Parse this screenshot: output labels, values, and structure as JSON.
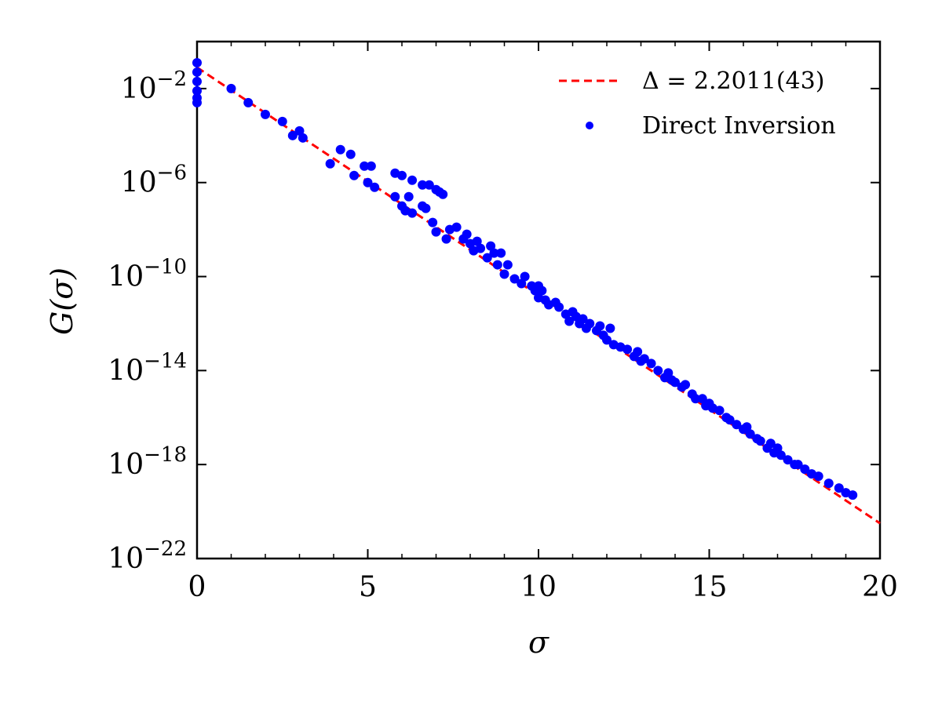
{
  "chart_data": {
    "type": "scatter",
    "xlabel": "σ",
    "ylabel": "G(σ)",
    "xlim": [
      0,
      20
    ],
    "ylim_log10": [
      -22,
      0
    ],
    "y_scale": "log",
    "x_ticks": [
      0,
      5,
      10,
      15,
      20
    ],
    "x_tick_labels": [
      "0",
      "5",
      "10",
      "15",
      "20"
    ],
    "y_ticks_exp": [
      -22,
      -18,
      -14,
      -10,
      -6,
      -2
    ],
    "y_tick_labels": [
      {
        "base": "10",
        "exp": "−22"
      },
      {
        "base": "10",
        "exp": "−18"
      },
      {
        "base": "10",
        "exp": "−14"
      },
      {
        "base": "10",
        "exp": "−10"
      },
      {
        "base": "10",
        "exp": "−6"
      },
      {
        "base": "10",
        "exp": "−2"
      }
    ],
    "legend_position": "top-right",
    "grid": false,
    "fit_line": {
      "name": "Δ = 2.2011(43)",
      "style": "dashed",
      "color": "#ff0000",
      "x": [
        0,
        20
      ],
      "log10_y": [
        -1.1,
        -20.5
      ]
    },
    "scatter_series": {
      "name": "Direct Inversion",
      "color": "#0000ff",
      "points_log10": [
        [
          0.0,
          -0.9
        ],
        [
          0.0,
          -1.3
        ],
        [
          0.0,
          -1.7
        ],
        [
          0.0,
          -2.1
        ],
        [
          0.0,
          -2.4
        ],
        [
          0.0,
          -2.6
        ],
        [
          1.0,
          -2.0
        ],
        [
          1.5,
          -2.6
        ],
        [
          2.0,
          -3.1
        ],
        [
          2.5,
          -3.4
        ],
        [
          2.8,
          -4.0
        ],
        [
          3.0,
          -3.8
        ],
        [
          3.1,
          -4.1
        ],
        [
          3.9,
          -5.2
        ],
        [
          4.2,
          -4.6
        ],
        [
          4.5,
          -4.8
        ],
        [
          4.6,
          -5.7
        ],
        [
          4.9,
          -5.3
        ],
        [
          5.0,
          -6.0
        ],
        [
          5.1,
          -5.3
        ],
        [
          5.2,
          -6.2
        ],
        [
          5.8,
          -6.6
        ],
        [
          5.8,
          -5.6
        ],
        [
          6.0,
          -7.0
        ],
        [
          6.0,
          -5.7
        ],
        [
          6.1,
          -7.2
        ],
        [
          6.2,
          -6.6
        ],
        [
          6.3,
          -5.9
        ],
        [
          6.3,
          -7.3
        ],
        [
          6.6,
          -6.1
        ],
        [
          6.6,
          -7.0
        ],
        [
          6.7,
          -7.1
        ],
        [
          6.8,
          -6.1
        ],
        [
          7.0,
          -6.3
        ],
        [
          7.1,
          -6.4
        ],
        [
          7.2,
          -6.5
        ],
        [
          6.9,
          -7.7
        ],
        [
          7.0,
          -8.1
        ],
        [
          7.3,
          -8.4
        ],
        [
          7.4,
          -8.0
        ],
        [
          7.6,
          -7.9
        ],
        [
          7.8,
          -8.4
        ],
        [
          7.9,
          -8.2
        ],
        [
          8.0,
          -8.6
        ],
        [
          8.1,
          -8.9
        ],
        [
          8.2,
          -8.5
        ],
        [
          8.3,
          -8.8
        ],
        [
          8.5,
          -9.2
        ],
        [
          8.6,
          -8.7
        ],
        [
          8.7,
          -9.0
        ],
        [
          8.8,
          -9.5
        ],
        [
          8.9,
          -9.0
        ],
        [
          9.0,
          -9.9
        ],
        [
          9.1,
          -9.5
        ],
        [
          9.3,
          -10.1
        ],
        [
          9.5,
          -10.3
        ],
        [
          9.6,
          -10.0
        ],
        [
          9.8,
          -10.4
        ],
        [
          9.9,
          -10.6
        ],
        [
          10.0,
          -10.9
        ],
        [
          10.0,
          -10.4
        ],
        [
          10.1,
          -10.6
        ],
        [
          10.2,
          -11.0
        ],
        [
          10.3,
          -11.2
        ],
        [
          10.5,
          -11.1
        ],
        [
          10.6,
          -11.3
        ],
        [
          10.8,
          -11.6
        ],
        [
          10.9,
          -11.9
        ],
        [
          11.0,
          -11.5
        ],
        [
          11.1,
          -11.7
        ],
        [
          11.2,
          -12.0
        ],
        [
          11.3,
          -11.8
        ],
        [
          11.4,
          -12.2
        ],
        [
          11.5,
          -12.0
        ],
        [
          11.7,
          -12.3
        ],
        [
          11.8,
          -12.1
        ],
        [
          11.9,
          -12.5
        ],
        [
          12.0,
          -12.7
        ],
        [
          12.1,
          -12.2
        ],
        [
          12.2,
          -12.9
        ],
        [
          12.4,
          -13.0
        ],
        [
          12.6,
          -13.1
        ],
        [
          12.8,
          -13.4
        ],
        [
          12.9,
          -13.2
        ],
        [
          13.0,
          -13.6
        ],
        [
          13.1,
          -13.5
        ],
        [
          13.3,
          -13.7
        ],
        [
          13.5,
          -14.0
        ],
        [
          13.7,
          -14.3
        ],
        [
          13.8,
          -14.1
        ],
        [
          13.9,
          -14.4
        ],
        [
          14.0,
          -14.5
        ],
        [
          14.2,
          -14.7
        ],
        [
          14.3,
          -14.6
        ],
        [
          14.5,
          -15.0
        ],
        [
          14.6,
          -15.2
        ],
        [
          14.8,
          -15.2
        ],
        [
          14.9,
          -15.5
        ],
        [
          15.0,
          -15.4
        ],
        [
          15.1,
          -15.6
        ],
        [
          15.3,
          -15.7
        ],
        [
          15.5,
          -16.0
        ],
        [
          15.6,
          -16.1
        ],
        [
          15.8,
          -16.3
        ],
        [
          16.0,
          -16.5
        ],
        [
          16.1,
          -16.4
        ],
        [
          16.2,
          -16.7
        ],
        [
          16.4,
          -16.9
        ],
        [
          16.5,
          -17.0
        ],
        [
          16.7,
          -17.3
        ],
        [
          16.8,
          -17.1
        ],
        [
          16.9,
          -17.5
        ],
        [
          17.0,
          -17.3
        ],
        [
          17.1,
          -17.6
        ],
        [
          17.3,
          -17.8
        ],
        [
          17.5,
          -18.0
        ],
        [
          17.6,
          -18.0
        ],
        [
          17.8,
          -18.2
        ],
        [
          18.0,
          -18.4
        ],
        [
          18.2,
          -18.5
        ],
        [
          18.5,
          -18.8
        ],
        [
          18.8,
          -19.0
        ],
        [
          19.0,
          -19.2
        ],
        [
          19.2,
          -19.3
        ]
      ]
    }
  }
}
